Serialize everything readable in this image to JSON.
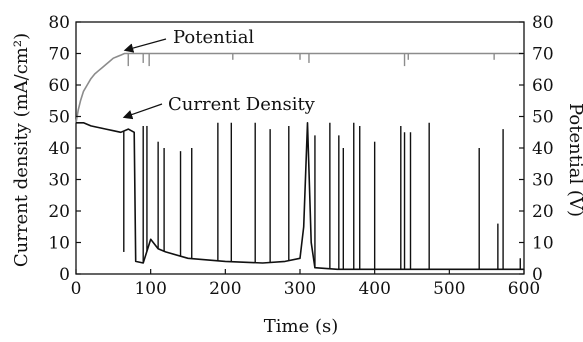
{
  "chart_data": {
    "type": "line",
    "xlabel": "Time (s)",
    "ylabel_left": "Current density (mA/cm²)",
    "ylabel_right": "Potential (V)",
    "xlim": [
      0,
      600
    ],
    "ylim_left": [
      0,
      80
    ],
    "ylim_right": [
      0,
      80
    ],
    "x_ticks": [
      0,
      100,
      200,
      300,
      400,
      500,
      600
    ],
    "y_ticks_left": [
      0,
      10,
      20,
      30,
      40,
      50,
      60,
      70,
      80
    ],
    "y_ticks_right": [
      0,
      10,
      20,
      30,
      40,
      50,
      60,
      70,
      80
    ],
    "grid": false,
    "legend": "none",
    "colors": {
      "potential": "#8c8c8c",
      "current": "#111111"
    },
    "annotations": [
      {
        "text": "Potential",
        "target": [
          65,
          70
        ]
      },
      {
        "text": "Current Density",
        "target": [
          60,
          48
        ]
      }
    ],
    "series": [
      {
        "axis": "right",
        "points": [
          [
            0,
            48
          ],
          [
            3,
            52
          ],
          [
            6,
            55
          ],
          [
            10,
            58
          ],
          [
            15,
            60
          ],
          [
            20,
            62
          ],
          [
            25,
            63.5
          ],
          [
            30,
            64.5
          ],
          [
            35,
            65.5
          ],
          [
            40,
            66.5
          ],
          [
            45,
            67.5
          ],
          [
            50,
            68.5
          ],
          [
            55,
            69
          ],
          [
            60,
            69.5
          ],
          [
            65,
            70
          ],
          [
            80,
            70
          ],
          [
            200,
            70
          ],
          [
            300,
            70
          ],
          [
            400,
            70
          ],
          [
            500,
            70
          ],
          [
            600,
            70
          ]
        ],
        "spikes": [
          {
            "x": 70,
            "to": 66
          },
          {
            "x": 90,
            "to": 67
          },
          {
            "x": 98,
            "to": 66
          },
          {
            "x": 210,
            "to": 68
          },
          {
            "x": 300,
            "to": 68
          },
          {
            "x": 312,
            "to": 67
          },
          {
            "x": 440,
            "to": 66
          },
          {
            "x": 445,
            "to": 68
          },
          {
            "x": 560,
            "to": 68
          }
        ]
      },
      {
        "axis": "left",
        "points": [
          [
            0,
            48
          ],
          [
            10,
            48
          ],
          [
            20,
            47
          ],
          [
            30,
            46.5
          ],
          [
            40,
            46
          ],
          [
            50,
            45.5
          ],
          [
            60,
            45
          ],
          [
            70,
            46
          ],
          [
            78,
            45
          ],
          [
            80,
            4
          ],
          [
            90,
            3.5
          ],
          [
            100,
            11
          ],
          [
            110,
            8
          ],
          [
            120,
            7
          ],
          [
            150,
            5
          ],
          [
            200,
            4
          ],
          [
            250,
            3.5
          ],
          [
            280,
            4
          ],
          [
            300,
            5
          ],
          [
            305,
            15
          ],
          [
            310,
            48
          ],
          [
            315,
            10
          ],
          [
            320,
            2
          ],
          [
            350,
            1.5
          ],
          [
            400,
            1.5
          ],
          [
            450,
            1.5
          ],
          [
            500,
            1.5
          ],
          [
            550,
            1.5
          ],
          [
            600,
            1.5
          ]
        ],
        "spikes": [
          {
            "x": 64,
            "to": 7
          },
          {
            "x": 90,
            "to": 47
          },
          {
            "x": 95,
            "to": 47
          },
          {
            "x": 110,
            "to": 42
          },
          {
            "x": 118,
            "to": 40
          },
          {
            "x": 140,
            "to": 39
          },
          {
            "x": 155,
            "to": 40
          },
          {
            "x": 190,
            "to": 48
          },
          {
            "x": 208,
            "to": 48
          },
          {
            "x": 240,
            "to": 48
          },
          {
            "x": 260,
            "to": 46
          },
          {
            "x": 285,
            "to": 47
          },
          {
            "x": 320,
            "to": 44
          },
          {
            "x": 340,
            "to": 48
          },
          {
            "x": 352,
            "to": 44
          },
          {
            "x": 358,
            "to": 40
          },
          {
            "x": 372,
            "to": 48
          },
          {
            "x": 380,
            "to": 47
          },
          {
            "x": 400,
            "to": 42
          },
          {
            "x": 435,
            "to": 47
          },
          {
            "x": 440,
            "to": 45
          },
          {
            "x": 448,
            "to": 45
          },
          {
            "x": 473,
            "to": 48
          },
          {
            "x": 540,
            "to": 40
          },
          {
            "x": 565,
            "to": 16
          },
          {
            "x": 572,
            "to": 46
          },
          {
            "x": 595,
            "to": 5
          }
        ]
      }
    ]
  }
}
